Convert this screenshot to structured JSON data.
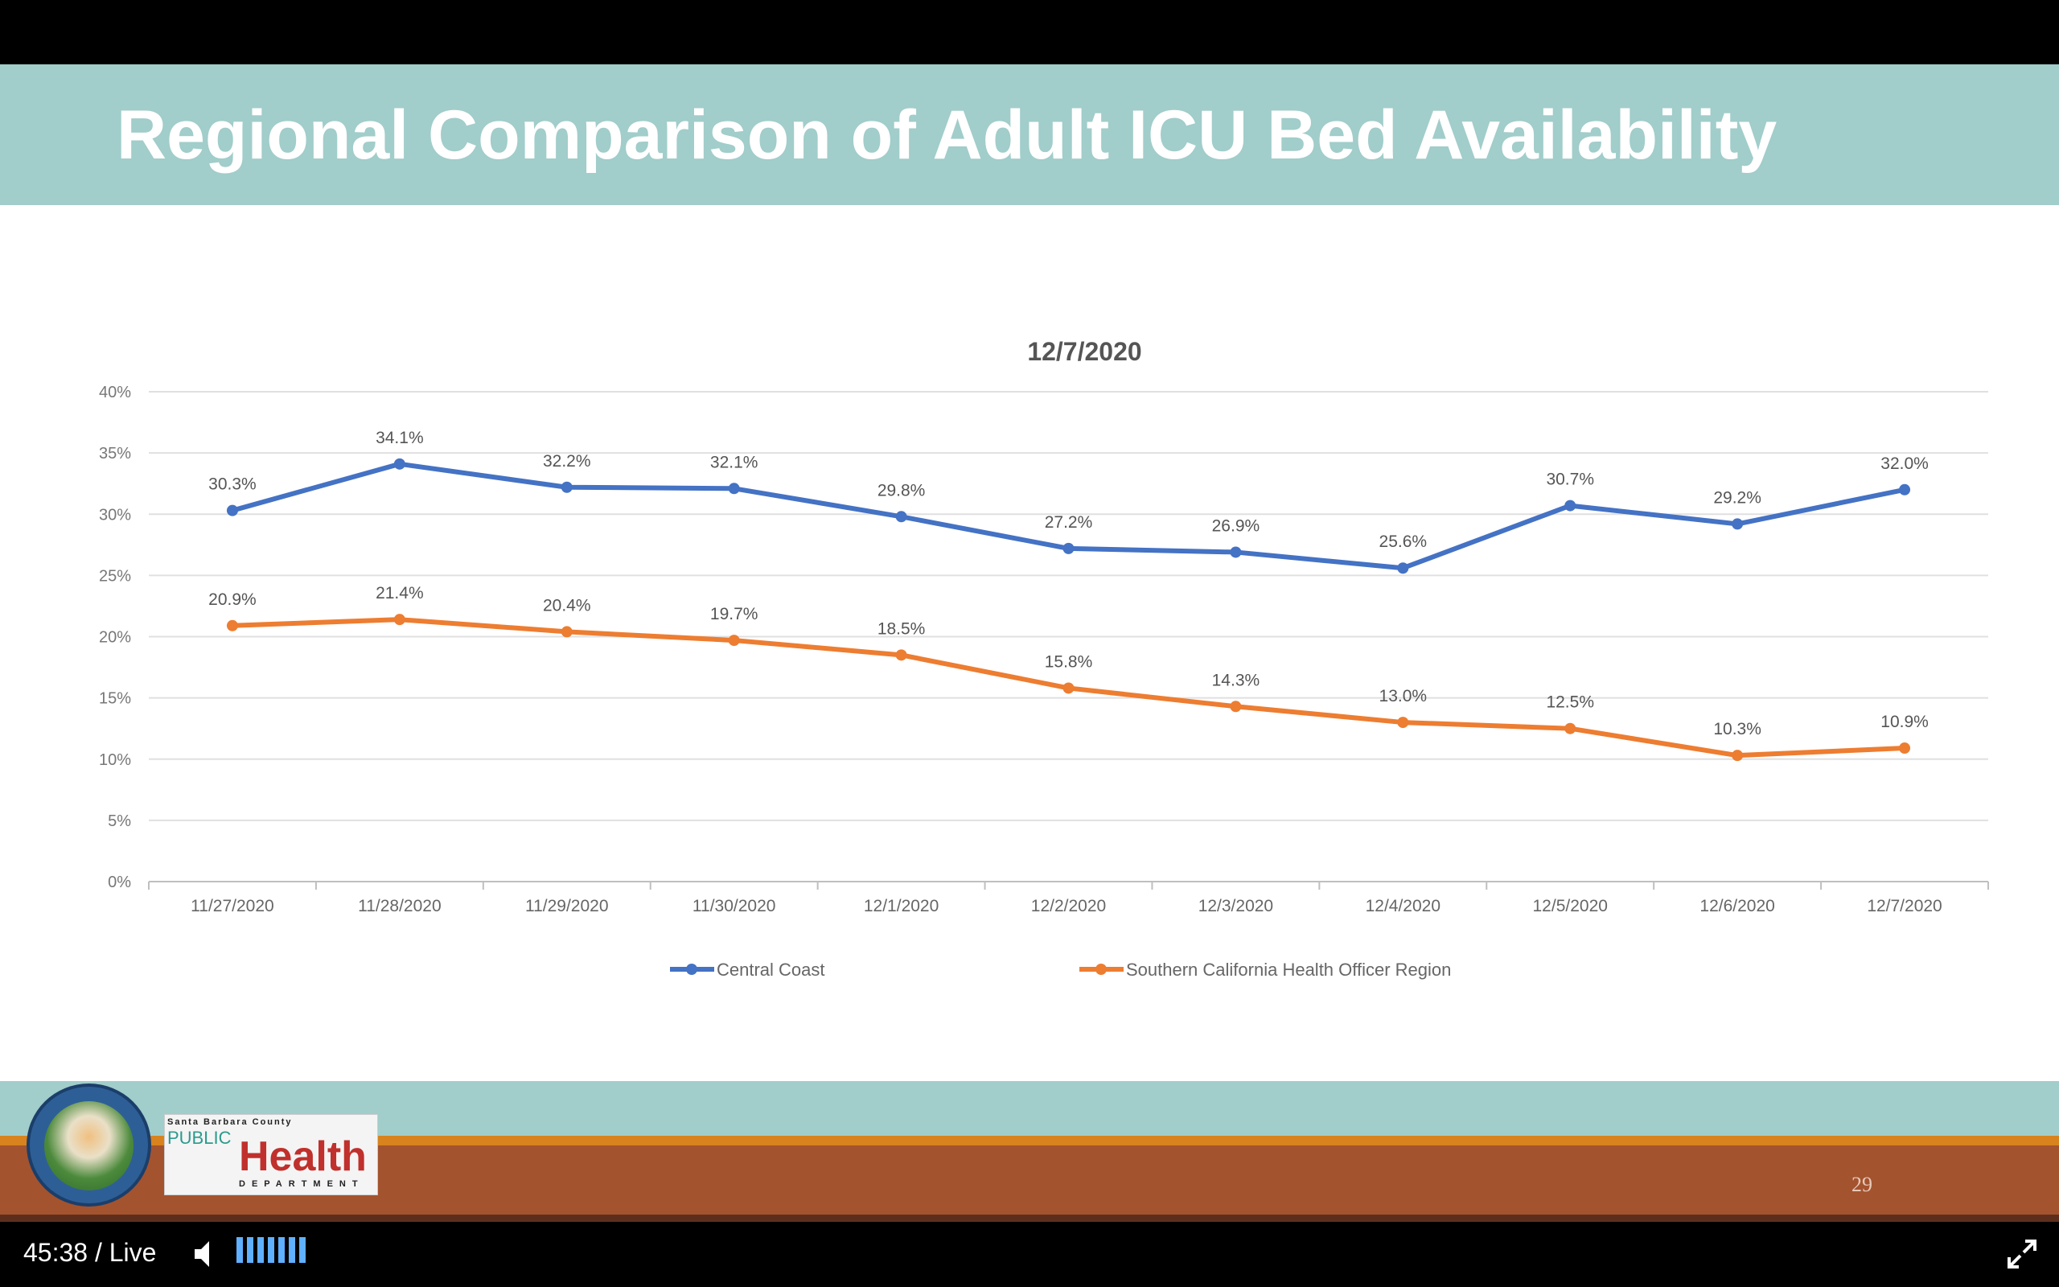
{
  "slide": {
    "title": "Regional Comparison of Adult ICU Bed Availability",
    "page_number": "29",
    "logo_seal_text": "County of Santa Barbara California",
    "logo_ph": {
      "line1": "Santa Barbara County",
      "line2": "PUBLIC",
      "line3": "Health",
      "line4": "DEPARTMENT"
    }
  },
  "chart_data": {
    "type": "line",
    "title": "12/7/2020",
    "xlabel": "",
    "ylabel": "",
    "ylim": [
      0,
      40
    ],
    "yticks": [
      "0%",
      "5%",
      "10%",
      "15%",
      "20%",
      "25%",
      "30%",
      "35%",
      "40%"
    ],
    "grid": true,
    "legend_position": "bottom",
    "categories": [
      "11/27/2020",
      "11/28/2020",
      "11/29/2020",
      "11/30/2020",
      "12/1/2020",
      "12/2/2020",
      "12/3/2020",
      "12/4/2020",
      "12/5/2020",
      "12/6/2020",
      "12/7/2020"
    ],
    "series": [
      {
        "name": "Central Coast",
        "color": "#4472c4",
        "values": [
          30.3,
          34.1,
          32.2,
          32.1,
          29.8,
          27.2,
          26.9,
          25.6,
          30.7,
          29.2,
          32.0
        ],
        "labels": [
          "30.3%",
          "34.1%",
          "32.2%",
          "32.1%",
          "29.8%",
          "27.2%",
          "26.9%",
          "25.6%",
          "30.7%",
          "29.2%",
          "32.0%"
        ]
      },
      {
        "name": "Southern California Health Officer Region",
        "color": "#ed7d31",
        "values": [
          20.9,
          21.4,
          20.4,
          19.7,
          18.5,
          15.8,
          14.3,
          13.0,
          12.5,
          10.3,
          10.9
        ],
        "labels": [
          "20.9%",
          "21.4%",
          "20.4%",
          "19.7%",
          "18.5%",
          "15.8%",
          "14.3%",
          "13.0%",
          "12.5%",
          "10.3%",
          "10.9%"
        ]
      }
    ]
  },
  "player": {
    "time": "45:38 / Live",
    "volume_bars": 7
  }
}
